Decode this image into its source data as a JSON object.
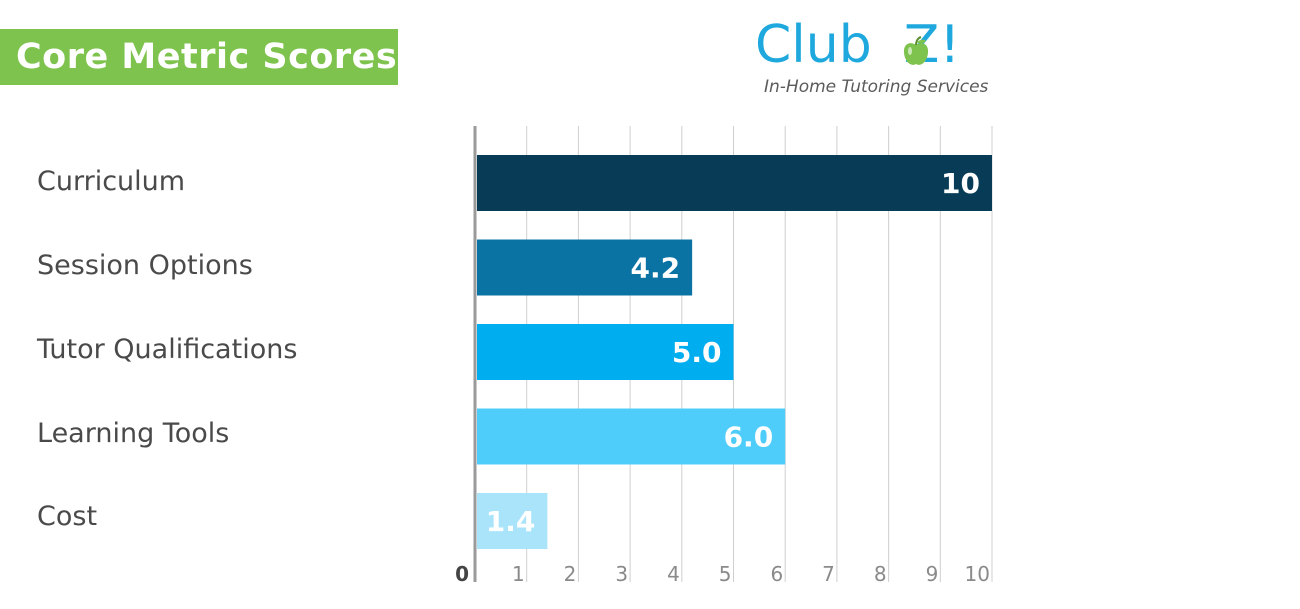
{
  "header": {
    "title": "Core Metric Scores"
  },
  "logo": {
    "name_prefix": "Club",
    "name_suffix": "Z!",
    "tagline": "In-Home Tutoring Services",
    "icon": "apple-icon"
  },
  "colors": {
    "title_bg": "#7ec34d",
    "logo_blue": "#1fa8dd",
    "bars": [
      "#073b56",
      "#0b73a4",
      "#00aef0",
      "#4fcdfa",
      "#a9e4fb"
    ],
    "grid": "#cfcfcf",
    "axis": "#9a9a9a"
  },
  "chart_data": {
    "type": "bar",
    "orientation": "horizontal",
    "title": "",
    "xlabel": "",
    "ylabel": "",
    "categories": [
      "Curriculum",
      "Session Options",
      "Tutor Qualifications",
      "Learning Tools",
      "Cost"
    ],
    "values": [
      10,
      4.2,
      5.0,
      6.0,
      1.4
    ],
    "value_labels": [
      "10",
      "4.2",
      "5.0",
      "6.0",
      "1.4"
    ],
    "xlim": [
      0,
      10
    ],
    "x_ticks": [
      "0",
      "1",
      "2",
      "3",
      "4",
      "5",
      "6",
      "7",
      "8",
      "9",
      "10"
    ],
    "grid": true,
    "legend": "none"
  }
}
